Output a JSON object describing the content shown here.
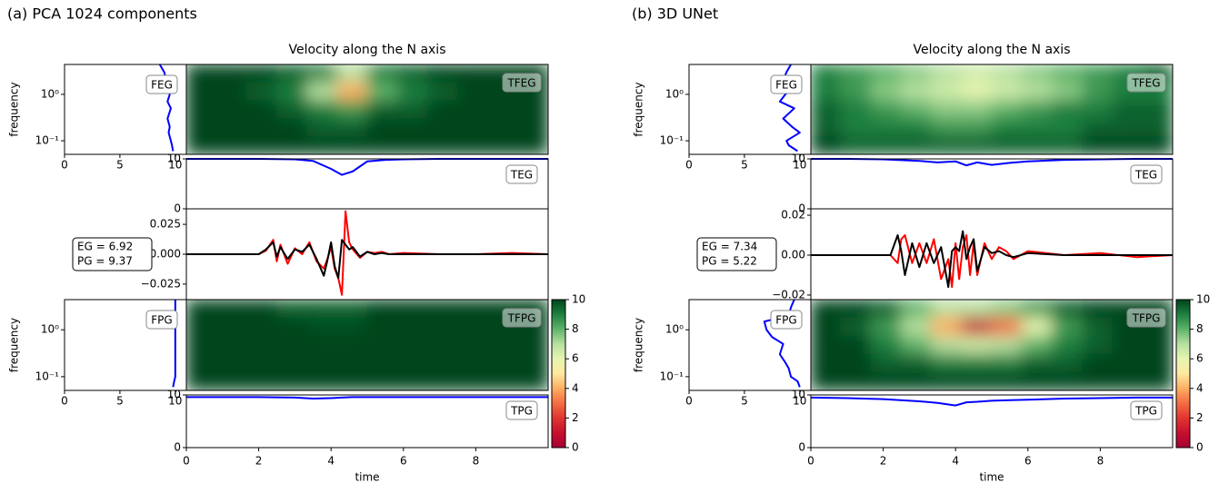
{
  "chart_data": [
    {
      "type": "tf-misfit",
      "panel_label": "(a) PCA 1024 components",
      "title": "Velocity along the N axis",
      "xlabel": "time",
      "xlim": [
        0,
        10
      ],
      "xticks": [
        0,
        2,
        4,
        6,
        8
      ],
      "freq_ylabel": "frequency",
      "freq_log": true,
      "freq_ylim": [
        0.051,
        4.4
      ],
      "freq_yticks": [
        {
          "value": 0.1,
          "label": "10⁻¹"
        },
        {
          "value": 1,
          "label": "10⁰"
        }
      ],
      "misfit_xlim": [
        0,
        11
      ],
      "misfit_xticks": [
        0,
        5,
        10
      ],
      "tfeg": {
        "label": "TFEG",
        "values": [
          [
            10,
            10,
            10,
            9.5,
            9,
            7,
            9,
            9.5,
            10,
            10,
            10,
            10
          ],
          [
            10,
            10,
            9.5,
            9,
            7,
            4,
            8,
            9,
            9.5,
            10,
            10,
            10
          ],
          [
            10,
            10,
            10,
            9.5,
            9,
            8.5,
            9.5,
            9.5,
            10,
            10,
            10,
            10
          ],
          [
            10,
            10,
            10,
            10,
            9.5,
            9.5,
            10,
            10,
            10,
            10,
            10,
            10
          ],
          [
            10,
            10,
            10,
            10,
            10,
            10,
            10,
            10,
            10,
            10,
            10,
            10
          ]
        ]
      },
      "feg": {
        "label": "FEG",
        "color": "#0000ff",
        "freq": [
          0.06,
          0.08,
          0.1,
          0.15,
          0.2,
          0.3,
          0.5,
          0.7,
          1,
          1.5,
          2,
          3,
          4.4
        ],
        "values": [
          9.8,
          9.7,
          9.6,
          9.4,
          9.5,
          9.3,
          9.6,
          9.3,
          9.5,
          9.4,
          9.2,
          9.0,
          8.6
        ]
      },
      "teg": {
        "label": "TEG",
        "color": "#0000ff",
        "ylim": [
          0,
          10
        ],
        "yticks": [
          0,
          10
        ],
        "x": [
          0,
          1,
          2,
          3,
          3.5,
          4,
          4.3,
          4.6,
          5,
          5.5,
          6,
          7,
          8,
          9,
          10
        ],
        "values": [
          10,
          10,
          10,
          9.9,
          9.6,
          8,
          6.8,
          7.5,
          9.5,
          9.8,
          9.9,
          10,
          10,
          10,
          10
        ]
      },
      "trace": {
        "ylim": [
          -0.038,
          0.038
        ],
        "yticks": [
          {
            "value": -0.025,
            "label": "−0.025"
          },
          {
            "value": 0,
            "label": "0.000"
          },
          0.025
        ],
        "x": [
          0,
          1,
          2,
          2.2,
          2.4,
          2.5,
          2.6,
          2.8,
          3,
          3.2,
          3.4,
          3.6,
          3.8,
          3.9,
          4.0,
          4.1,
          4.2,
          4.3,
          4.4,
          4.5,
          4.6,
          4.8,
          5,
          5.2,
          5.4,
          5.6,
          6,
          7,
          8,
          9,
          10
        ],
        "series": [
          {
            "color": "#ff0000",
            "values": [
              0,
              0,
              0,
              0.003,
              0.012,
              -0.006,
              0.008,
              -0.008,
              0.005,
              0,
              0.01,
              -0.006,
              -0.012,
              -0.004,
              0.006,
              -0.012,
              -0.02,
              -0.034,
              0.036,
              0.01,
              0.004,
              -0.003,
              0.002,
              0.001,
              0.002,
              0,
              0.001,
              0,
              0,
              0.001,
              0
            ]
          },
          {
            "color": "#000000",
            "values": [
              0,
              0,
              0,
              0.004,
              0.01,
              -0.002,
              0.006,
              -0.004,
              0.004,
              0.002,
              0.008,
              -0.004,
              -0.018,
              -0.005,
              0.01,
              -0.01,
              -0.02,
              0.012,
              0.008,
              0.004,
              0.006,
              -0.002,
              0.002,
              0,
              0.001,
              0,
              0,
              0,
              0,
              0,
              0
            ]
          }
        ]
      },
      "eg_label": "EG = 6.92",
      "pg_label": "PG = 9.37",
      "tfpg": {
        "label": "TFPG",
        "values": [
          [
            10,
            10,
            10,
            9.5,
            9.5,
            9.5,
            10,
            10,
            10,
            10,
            10,
            10
          ],
          [
            10,
            10,
            10,
            10,
            9.8,
            9.8,
            10,
            10,
            10,
            10,
            10,
            10
          ],
          [
            10,
            10,
            10,
            10,
            10,
            10,
            10,
            10,
            10,
            10,
            10,
            10
          ],
          [
            10,
            10,
            10,
            10,
            10,
            10,
            10,
            10,
            10,
            10,
            10,
            10
          ],
          [
            10,
            10,
            10,
            10,
            10,
            10,
            10,
            10,
            10,
            10,
            10,
            10
          ]
        ]
      },
      "fpg": {
        "label": "FPG",
        "color": "#0000ff",
        "freq": [
          0.06,
          0.08,
          0.1,
          0.15,
          0.2,
          0.3,
          0.5,
          0.7,
          1,
          1.5,
          2,
          3,
          4.4
        ],
        "values": [
          9.8,
          9.9,
          10,
          10,
          10,
          10,
          10,
          10,
          10,
          10,
          10,
          10,
          10
        ]
      },
      "tpg": {
        "label": "TPG",
        "color": "#0000ff",
        "ylim": [
          0,
          10
        ],
        "yticks": [
          0,
          10
        ],
        "x": [
          0,
          1,
          2,
          3,
          3.5,
          4,
          4.3,
          4.6,
          5,
          5.5,
          6,
          7,
          8,
          9,
          10
        ],
        "values": [
          9.6,
          9.6,
          9.6,
          9.5,
          9.3,
          9.4,
          9.5,
          9.6,
          9.6,
          9.6,
          9.6,
          9.6,
          9.6,
          9.6,
          9.6
        ]
      },
      "colorbar": {
        "lim": [
          0,
          10
        ],
        "ticks": [
          0,
          2,
          4,
          6,
          8,
          10
        ],
        "colors": [
          "#a50034",
          "#c8102e",
          "#e03530",
          "#f46d43",
          "#fdae61",
          "#fee9a0",
          "#e6f5b0",
          "#b7e0a0",
          "#5fb36a",
          "#1e8040",
          "#00441b"
        ]
      }
    },
    {
      "type": "tf-misfit",
      "panel_label": "(b) 3D UNet",
      "title": "Velocity along the N axis",
      "xlabel": "time",
      "xlim": [
        0,
        10
      ],
      "xticks": [
        0,
        2,
        4,
        6,
        8
      ],
      "freq_ylabel": "frequency",
      "freq_log": true,
      "freq_ylim": [
        0.051,
        4.4
      ],
      "freq_yticks": [
        {
          "value": 0.1,
          "label": "10⁻¹"
        },
        {
          "value": 1,
          "label": "10⁰"
        }
      ],
      "misfit_xlim": [
        0,
        11
      ],
      "misfit_xticks": [
        0,
        5,
        10
      ],
      "tfeg": {
        "label": "TFEG",
        "values": [
          [
            9,
            8.5,
            8,
            7.5,
            7,
            6.5,
            7,
            7.5,
            8,
            8.5,
            9,
            9.5
          ],
          [
            9,
            8.5,
            7.5,
            7,
            6.5,
            6,
            6.5,
            7,
            7.5,
            8.5,
            9,
            9
          ],
          [
            9.5,
            9,
            8.5,
            8,
            7.5,
            7.5,
            8,
            8.5,
            9,
            9,
            9.5,
            9.5
          ],
          [
            9.5,
            9,
            9,
            9,
            8.5,
            8.5,
            9,
            9,
            9,
            9.5,
            9.5,
            9.5
          ],
          [
            10,
            9.5,
            9.5,
            9.5,
            9.5,
            9.5,
            9.5,
            9.5,
            9.5,
            10,
            10,
            10
          ]
        ]
      },
      "feg": {
        "label": "FEG",
        "color": "#0000ff",
        "freq": [
          0.06,
          0.08,
          0.1,
          0.15,
          0.2,
          0.3,
          0.5,
          0.7,
          1,
          1.5,
          2,
          3,
          4.4
        ],
        "values": [
          9.8,
          9,
          8.8,
          10,
          9.3,
          8.5,
          9.5,
          8.2,
          8.7,
          9.6,
          8.5,
          8.8,
          9.2
        ]
      },
      "teg": {
        "label": "TEG",
        "color": "#0000ff",
        "ylim": [
          0,
          10
        ],
        "yticks": [
          0,
          10
        ],
        "x": [
          0,
          1,
          2,
          3,
          3.5,
          4,
          4.3,
          4.6,
          5,
          5.5,
          6,
          7,
          8,
          9,
          10
        ],
        "values": [
          10,
          10,
          9.9,
          9.6,
          9.3,
          9.5,
          8.7,
          9.3,
          8.8,
          9.2,
          9.5,
          9.8,
          9.9,
          10,
          10
        ]
      },
      "trace": {
        "ylim": [
          -0.0223,
          0.0232
        ],
        "yticks": [
          {
            "value": -0.02,
            "label": "−0.02"
          },
          {
            "value": 0,
            "label": "0.00"
          },
          0.02
        ],
        "x": [
          0,
          1,
          2,
          2.2,
          2.4,
          2.5,
          2.6,
          2.8,
          3,
          3.2,
          3.4,
          3.6,
          3.8,
          3.9,
          4.0,
          4.1,
          4.2,
          4.3,
          4.4,
          4.5,
          4.6,
          4.8,
          5,
          5.2,
          5.4,
          5.6,
          6,
          7,
          8,
          9,
          10
        ],
        "series": [
          {
            "color": "#ff0000",
            "values": [
              0,
              0,
              0,
              0,
              -0.004,
              0.008,
              0.01,
              -0.004,
              0.006,
              -0.004,
              0.008,
              -0.012,
              -0.002,
              -0.016,
              0.006,
              -0.012,
              0.004,
              0.01,
              -0.01,
              0.006,
              -0.01,
              0.006,
              -0.002,
              0.004,
              0.002,
              -0.002,
              0.002,
              0,
              0.001,
              -0.001,
              0
            ]
          },
          {
            "color": "#000000",
            "values": [
              0,
              0,
              0,
              0,
              0.01,
              0.002,
              -0.01,
              0.006,
              -0.006,
              0.006,
              -0.004,
              0.004,
              -0.016,
              0.002,
              0.004,
              0.002,
              0.012,
              -0.002,
              0.004,
              0.008,
              -0.008,
              0.004,
              0.001,
              0.002,
              0,
              -0.001,
              0.001,
              0,
              0,
              0,
              0
            ]
          }
        ]
      },
      "eg_label": "EG = 7.34",
      "pg_label": "PG = 5.22",
      "tfpg": {
        "label": "TFPG",
        "values": [
          [
            10,
            10,
            9.5,
            8,
            7,
            7,
            7.5,
            8.5,
            9.5,
            10,
            10,
            10
          ],
          [
            10,
            9.5,
            8.5,
            7,
            4,
            1,
            3,
            6,
            8.5,
            9.5,
            10,
            10
          ],
          [
            10,
            10,
            9,
            8,
            7,
            6.5,
            7,
            8,
            9,
            9.5,
            10,
            10
          ],
          [
            10,
            10,
            9.5,
            9.5,
            9,
            9,
            9,
            9.5,
            9.5,
            10,
            10,
            10
          ],
          [
            10,
            10,
            10,
            10,
            10,
            10,
            10,
            10,
            10,
            10,
            10,
            10
          ]
        ]
      },
      "fpg": {
        "label": "FPG",
        "color": "#0000ff",
        "freq": [
          0.06,
          0.08,
          0.1,
          0.15,
          0.2,
          0.3,
          0.5,
          0.7,
          1,
          1.5,
          2,
          3,
          4.4
        ],
        "values": [
          10,
          9.8,
          9.2,
          9,
          8.7,
          8.2,
          8.5,
          7.5,
          7,
          6.8,
          9,
          9.2,
          9.5
        ]
      },
      "tpg": {
        "label": "TPG",
        "color": "#0000ff",
        "ylim": [
          0,
          10
        ],
        "yticks": [
          0,
          10
        ],
        "x": [
          0,
          1,
          2,
          3,
          3.5,
          4,
          4.3,
          4.6,
          5,
          5.5,
          6,
          7,
          8,
          9,
          10
        ],
        "values": [
          9.5,
          9.4,
          9.2,
          8.8,
          8.5,
          8,
          8.6,
          8.7,
          8.9,
          9.0,
          9.1,
          9.3,
          9.4,
          9.5,
          9.5
        ]
      },
      "colorbar": {
        "lim": [
          0,
          10
        ],
        "ticks": [
          0,
          2,
          4,
          6,
          8,
          10
        ],
        "colors": [
          "#a50034",
          "#c8102e",
          "#e03530",
          "#f46d43",
          "#fdae61",
          "#fee9a0",
          "#e6f5b0",
          "#b7e0a0",
          "#5fb36a",
          "#1e8040",
          "#00441b"
        ]
      }
    }
  ]
}
